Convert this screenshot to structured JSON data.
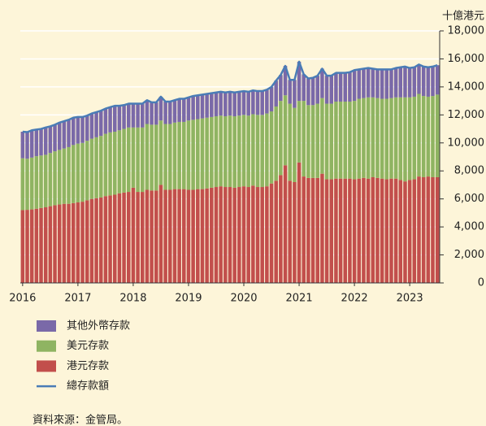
{
  "chart_data": {
    "type": "bar",
    "stacked": true,
    "y_label": "十億港元",
    "source": "資料來源：金管局。",
    "categories": [
      "2016",
      null,
      null,
      null,
      null,
      null,
      null,
      null,
      null,
      null,
      null,
      null,
      "2017",
      null,
      null,
      null,
      null,
      null,
      null,
      null,
      null,
      null,
      null,
      null,
      "2018",
      null,
      null,
      null,
      null,
      null,
      null,
      null,
      null,
      null,
      null,
      null,
      "2019",
      null,
      null,
      null,
      null,
      null,
      null,
      null,
      null,
      null,
      null,
      null,
      "2020",
      null,
      null,
      null,
      null,
      null,
      null,
      null,
      null,
      null,
      null,
      null,
      "2021",
      null,
      null,
      null,
      null,
      null,
      null,
      null,
      null,
      null,
      null,
      null,
      "2022",
      null,
      null,
      null,
      null,
      null,
      null,
      null,
      null,
      null,
      null,
      null,
      "2023",
      null,
      null,
      null,
      null,
      null,
      null
    ],
    "series": [
      {
        "name": "其他外幣存款",
        "type": "bar",
        "color": "#7a69a8",
        "values": [
          1900,
          1900,
          1950,
          1900,
          1900,
          1950,
          1900,
          1900,
          1950,
          1950,
          1950,
          1950,
          1900,
          1850,
          1800,
          1800,
          1800,
          1800,
          1800,
          1800,
          1850,
          1750,
          1700,
          1700,
          1700,
          1700,
          1700,
          1700,
          1600,
          1600,
          1700,
          1600,
          1600,
          1600,
          1650,
          1650,
          1650,
          1700,
          1700,
          1700,
          1700,
          1700,
          1700,
          1700,
          1700,
          1700,
          1700,
          1700,
          1700,
          1700,
          1700,
          1700,
          1700,
          1700,
          1750,
          1850,
          1850,
          2100,
          1700,
          2000,
          2800,
          1900,
          1900,
          1950,
          2000,
          2100,
          2000,
          2000,
          2050,
          2050,
          2050,
          2100,
          2200,
          2100,
          2100,
          2100,
          2050,
          2050,
          2100,
          2100,
          2050,
          2100,
          2150,
          2200,
          2100,
          2100,
          2100,
          2100,
          2100,
          2100,
          2100
        ]
      },
      {
        "name": "美元存款",
        "type": "bar",
        "color": "#8fb462",
        "values": [
          3700,
          3650,
          3700,
          3750,
          3750,
          3750,
          3800,
          3850,
          3900,
          3950,
          4050,
          4150,
          4200,
          4200,
          4250,
          4300,
          4350,
          4400,
          4450,
          4500,
          4500,
          4500,
          4550,
          4600,
          4300,
          4600,
          4600,
          4700,
          4700,
          4700,
          4600,
          4700,
          4700,
          4750,
          4800,
          4800,
          4950,
          5000,
          5000,
          5050,
          5050,
          5050,
          5050,
          5050,
          5050,
          5100,
          5100,
          5100,
          5100,
          5100,
          5100,
          5150,
          5150,
          5200,
          5150,
          5300,
          5300,
          5000,
          5500,
          5300,
          4400,
          5400,
          5200,
          5200,
          5300,
          5400,
          5400,
          5400,
          5500,
          5500,
          5500,
          5500,
          5600,
          5700,
          5700,
          5800,
          5700,
          5700,
          5700,
          5750,
          5750,
          5800,
          5900,
          6000,
          5900,
          5900,
          5900,
          5800,
          5700,
          5800,
          5900
        ]
      },
      {
        "name": "港元存款",
        "type": "bar",
        "color": "#c24f4c",
        "values": [
          5200,
          5220,
          5250,
          5300,
          5350,
          5400,
          5480,
          5550,
          5600,
          5650,
          5650,
          5700,
          5750,
          5800,
          5900,
          6000,
          6050,
          6100,
          6200,
          6250,
          6300,
          6400,
          6450,
          6500,
          6800,
          6500,
          6500,
          6650,
          6600,
          6600,
          7000,
          6650,
          6650,
          6700,
          6700,
          6700,
          6650,
          6650,
          6700,
          6700,
          6750,
          6800,
          6850,
          6900,
          6850,
          6850,
          6800,
          6850,
          6900,
          6850,
          6950,
          6850,
          6850,
          6900,
          7100,
          7300,
          7700,
          8400,
          7300,
          7200,
          8600,
          7600,
          7500,
          7500,
          7500,
          7800,
          7400,
          7400,
          7450,
          7450,
          7450,
          7450,
          7400,
          7450,
          7500,
          7450,
          7550,
          7500,
          7450,
          7400,
          7450,
          7450,
          7350,
          7250,
          7350,
          7400,
          7600,
          7550,
          7600,
          7550,
          7550
        ]
      },
      {
        "name": "總存款額",
        "type": "line",
        "color": "#4a7cb6",
        "values": [
          10800,
          10770,
          10900,
          10950,
          11000,
          11100,
          11180,
          11300,
          11450,
          11550,
          11650,
          11800,
          11850,
          11850,
          11950,
          12100,
          12200,
          12300,
          12450,
          12550,
          12650,
          12650,
          12700,
          12800,
          12800,
          12800,
          12800,
          13050,
          12900,
          12900,
          13300,
          12950,
          12950,
          13050,
          13150,
          13150,
          13250,
          13350,
          13400,
          13450,
          13500,
          13550,
          13600,
          13650,
          13600,
          13650,
          13600,
          13650,
          13700,
          13650,
          13750,
          13700,
          13700,
          13800,
          14000,
          14450,
          14850,
          15500,
          14500,
          14500,
          15800,
          14900,
          14600,
          14650,
          14800,
          15300,
          14800,
          14800,
          15000,
          15000,
          15000,
          15050,
          15200,
          15250,
          15300,
          15350,
          15300,
          15250,
          15250,
          15250,
          15250,
          15350,
          15400,
          15450,
          15350,
          15400,
          15600,
          15450,
          15400,
          15450,
          15550
        ]
      }
    ],
    "ylim": [
      0,
      18000
    ],
    "yticks": [
      0,
      {
        "value": 2000,
        "label": "2,000"
      },
      {
        "value": 4000,
        "label": "4,000"
      },
      {
        "value": 6000,
        "label": "6,000"
      },
      {
        "value": 8000,
        "label": "8,000"
      },
      {
        "value": 10000,
        "label": "10,000"
      },
      {
        "value": 12000,
        "label": "12,000"
      },
      {
        "value": 14000,
        "label": "14,000"
      },
      {
        "value": 16000,
        "label": "16,000"
      },
      {
        "value": 18000,
        "label": "18,000"
      }
    ],
    "grid": true
  }
}
